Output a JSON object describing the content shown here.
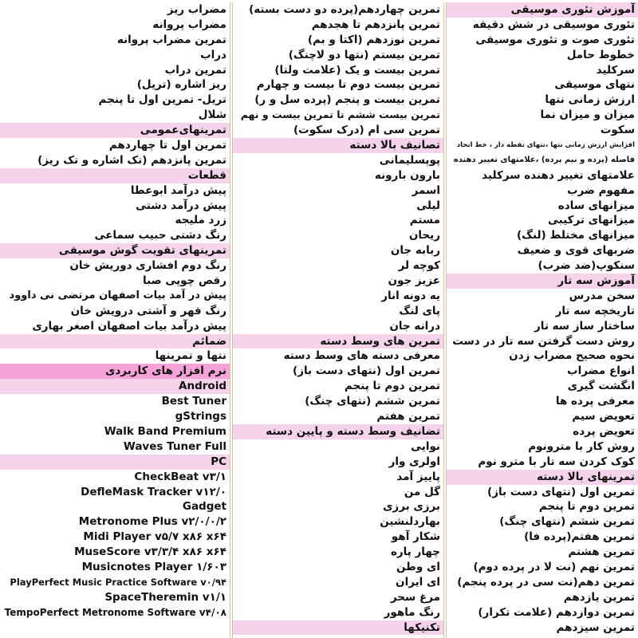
{
  "columns": [
    {
      "sections": [
        {
          "title": "آموزش تئوری موسیقی",
          "items": [
            "تئوری موسیقی در شش دقیقه",
            "تئوری صوت و تئوری موسیقی",
            "خطوط حامل",
            "سرکلید",
            "نتهای موسیقی",
            "ارزش زمانی نتها",
            "میزان و میزان نما",
            "سکوت",
            "افزایش ارزش زمانی نتها ،نتهای نقطه دار ، خط اتحاد",
            "فاصله (پرده و نیم پرده) ،علامتهای تغییر دهنده",
            "علامتهای تغییر دهنده سرکلید",
            "مفهوم ضرب",
            "میزانهای ساده",
            "میزانهای ترکیبی",
            "میزانهای مختلط (لنگ)",
            "ضربهای قوی و ضعیف",
            "سنکوپ(ضد ضرب)"
          ]
        },
        {
          "title": "آموزش سه تار",
          "items": [
            "سخن مدرس",
            "تاریخچه سه تار",
            "ساختار ساز سه تار",
            "روش دست گرفتن سه تار در دست",
            "نحوه صحیح مضراب زدن",
            "انواع مضراب",
            "انگشت گیری",
            "معرفی پرده ها",
            "تعویض سیم",
            "تعویض پرده",
            "روش کار با مترونوم",
            "کوک کردن سه تار با مترو نوم"
          ]
        },
        {
          "title": "تمرینهای بالا دسته",
          "items": [
            "تمرین اول (نتهای دست باز)",
            "تمرین دوم تا پنجم",
            "تمرین ششم (نتهای چنگ)",
            "تمرین هفتم(پرده فا)",
            "تمرین هشتم",
            "تمرین نهم (نت لا در پرده دوم)",
            "تمرین دهم(نت سی در پرده پنجم)",
            "تمرین یازدهم",
            "تمرین دوازدهم (علامت تکرار)",
            "تمرین سیزدهم"
          ]
        }
      ]
    },
    {
      "sections": [
        {
          "items": [
            "تمرین چهاردهم(پرده دو دست بسته)",
            "تمرین پانزدهم تا هجدهم",
            "تمرین نوزدهم (اکتا و بم)",
            "تمرین بیستم (نتها دو لاچنگ)",
            "تمرین بیست و یک (علامت ولتا)",
            "تمرین بیست دوم تا بیست و چهارم",
            "تمرین بیست و پنجم (پرده سل و ر)",
            "تمرین بیست ششم تا تمرین بیست و نهم",
            "تمرین سی ام (درک سکوت)"
          ]
        },
        {
          "title": "تصانیف بالا دسته",
          "items": [
            "پوپسلیمانی",
            "بارون بارونه",
            "اسمر",
            "لیلی",
            "مستم",
            "ریحان",
            "ربابه جان",
            "کوچه لر",
            "عزیز جون",
            "یه دونه انار",
            "پای لنگ",
            "درانه جان"
          ]
        },
        {
          "title": "تمرین های وسط دسته",
          "items": [
            "معرفی دسته های وسط دسته",
            "تمرین اول (نتهای دست باز)",
            "تمرین دوم تا پنجم",
            "تمرین ششم (نتهای چنگ)",
            "تمرین هفتم"
          ]
        },
        {
          "title": "تضانیف وسط دسته و پایین دسته",
          "items": [
            "نوایی",
            "اولری وار",
            "پاییز آمد",
            "گل من",
            "برزی برزی",
            "بهاردلنشین",
            "شکار آهو",
            "چهار پاره",
            "ای وطن",
            "ای ایران",
            "مرغ سحر",
            "رنگ ماهور"
          ]
        },
        {
          "title": "تکنیکها",
          "items": []
        }
      ]
    },
    {
      "sections": [
        {
          "items": [
            "مضراب ریز",
            "مضراب پروانه",
            "تمرین مضراب پروانه",
            "دراب",
            "تمرین دراب",
            "ریز اشاره (تریل)",
            "تریل- تمرین اول تا پنجم",
            "شلال"
          ]
        },
        {
          "title": "تمرینهای‌عمومی",
          "items": [
            "تمرین اول تا چهاردهم",
            "تمرین پانزدهم (تک اشاره و تک ریز)"
          ]
        },
        {
          "title": "قطعات",
          "items": [
            "پیش درآمد ابوعطا",
            "پیش درآمد دشتی",
            "زرد ملیجه",
            "رنگ دشتی حبیب سماعی"
          ]
        },
        {
          "title": "تمرینهای تقویت گوش موسیقی",
          "items": [
            "رنگ دوم افشاری دوریش خان",
            "رقص چوپی صبا",
            "پیش در آمد بیات اصفهان مرتضی نی داوود",
            "رنگ قهر و آشتی درویش خان",
            "پیش درآمد بیات اصفهان اصغر بهاری"
          ]
        },
        {
          "title": "ضمائم",
          "items": [
            "نتها و تمرینها"
          ]
        },
        {
          "title": "نرم افزار های کاربردی",
          "color": "#f5a3d9",
          "items": []
        },
        {
          "title": "Android",
          "items": [
            "Best Tuner",
            "gStrings",
            "Walk Band Premium",
            "Waves Tuner Full"
          ]
        },
        {
          "title": "PC",
          "items": [
            "CheckBeat v۳/۱",
            "DefleMask Tracker v۱۲/۰",
            "Gadget",
            "Metronome Plus v۲/۰/۰/۲",
            "Midi Player v۵/۷ x۸۶ x۶۴",
            "MuseScore v۳/۳/۴ x۸۶ x۶۴",
            "Musicnotes Player ۱/۶۰۳",
            "PlayPerfect Music Practice Software v۰/۹۴",
            "SpaceTheremin v۱/۱",
            "TempoPerfect Metronome Software v۴/۰۸"
          ]
        }
      ]
    }
  ]
}
